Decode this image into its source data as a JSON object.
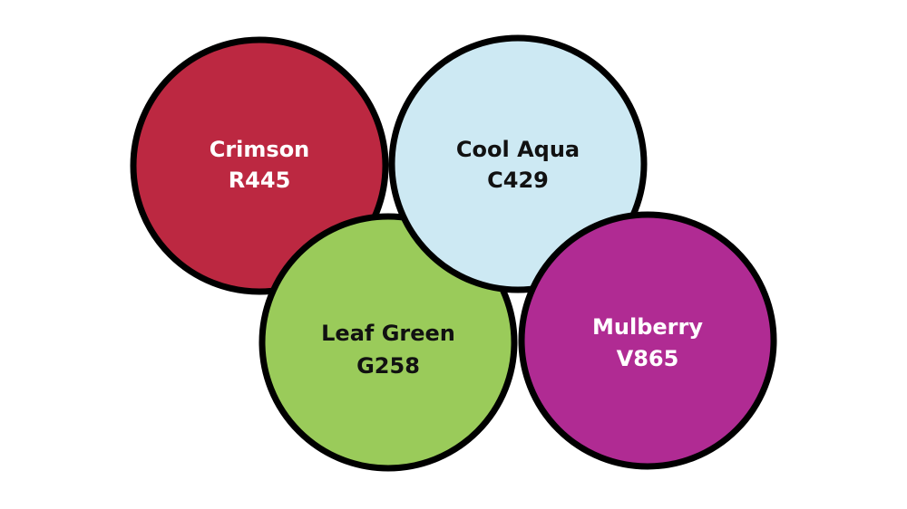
{
  "swatches": [
    {
      "label": "Crimson",
      "code": "R445"
    },
    {
      "label": "Cool Aqua",
      "code": "C429"
    },
    {
      "label": "Leaf Green",
      "code": "G258"
    },
    {
      "label": "Mulberry",
      "code": "V865"
    }
  ]
}
